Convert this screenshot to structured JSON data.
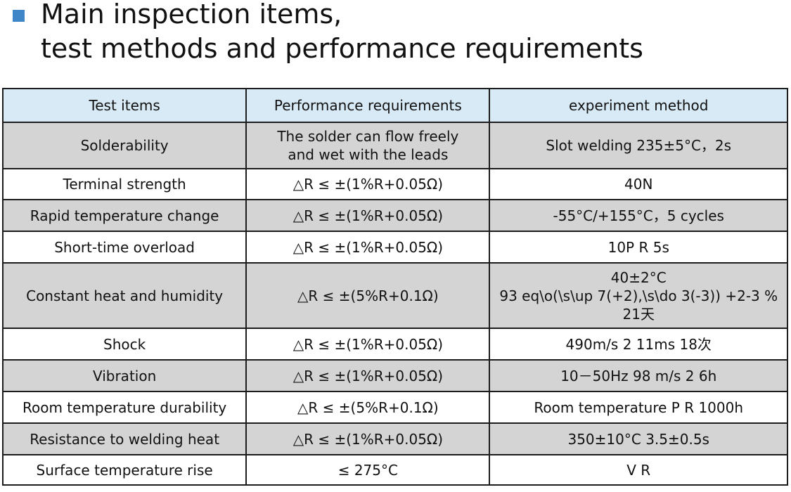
{
  "header": {
    "title_line1": "Main inspection items,",
    "title_line2": "test methods and performance requirements",
    "bullet_color": "#3f86c8"
  },
  "table": {
    "columns": [
      "Test items",
      "Performance requirements",
      "experiment method"
    ],
    "rows": [
      {
        "item": "Solderability",
        "requirement": [
          "The solder can flow freely",
          "and wet with the leads"
        ],
        "method": [
          "Slot welding  235±5°C，2s"
        ]
      },
      {
        "item": "Terminal strength",
        "requirement": [
          "△R ≤ ±(1%R+0.05Ω)"
        ],
        "method": [
          "40N"
        ]
      },
      {
        "item": "Rapid temperature change",
        "requirement": [
          "△R ≤ ±(1%R+0.05Ω)"
        ],
        "method": [
          "-55°C/+155°C，5 cycles"
        ]
      },
      {
        "item": "Short-time overload",
        "requirement": [
          "△R ≤ ±(1%R+0.05Ω)"
        ],
        "method": [
          "10P R    5s"
        ]
      },
      {
        "item": "Constant heat and humidity",
        "requirement": [
          "△R ≤ ±(5%R+0.1Ω)"
        ],
        "method": [
          "40±2°C",
          "93 eq\\o(\\s\\up 7(+2),\\s\\do 3(-3)) +2-3 %",
          "21天"
        ]
      },
      {
        "item": "Shock",
        "requirement": [
          "△R ≤ ±(1%R+0.05Ω)"
        ],
        "method": [
          "490m/s 2 11ms 18次"
        ]
      },
      {
        "item": "Vibration",
        "requirement": [
          "△R ≤ ±(1%R+0.05Ω)"
        ],
        "method": [
          "10－50Hz 98 m/s 2 6h"
        ]
      },
      {
        "item": "Room temperature durability",
        "requirement": [
          "△R ≤ ±(5%R+0.1Ω)"
        ],
        "method": [
          "Room temperature  P R    1000h"
        ]
      },
      {
        "item": "Resistance to welding heat",
        "requirement": [
          "△R ≤ ±(1%R+0.05Ω)"
        ],
        "method": [
          "350±10°C   3.5±0.5s"
        ]
      },
      {
        "item": "Surface temperature rise",
        "requirement": [
          "≤ 275°C"
        ],
        "method": [
          "V R"
        ]
      }
    ]
  }
}
